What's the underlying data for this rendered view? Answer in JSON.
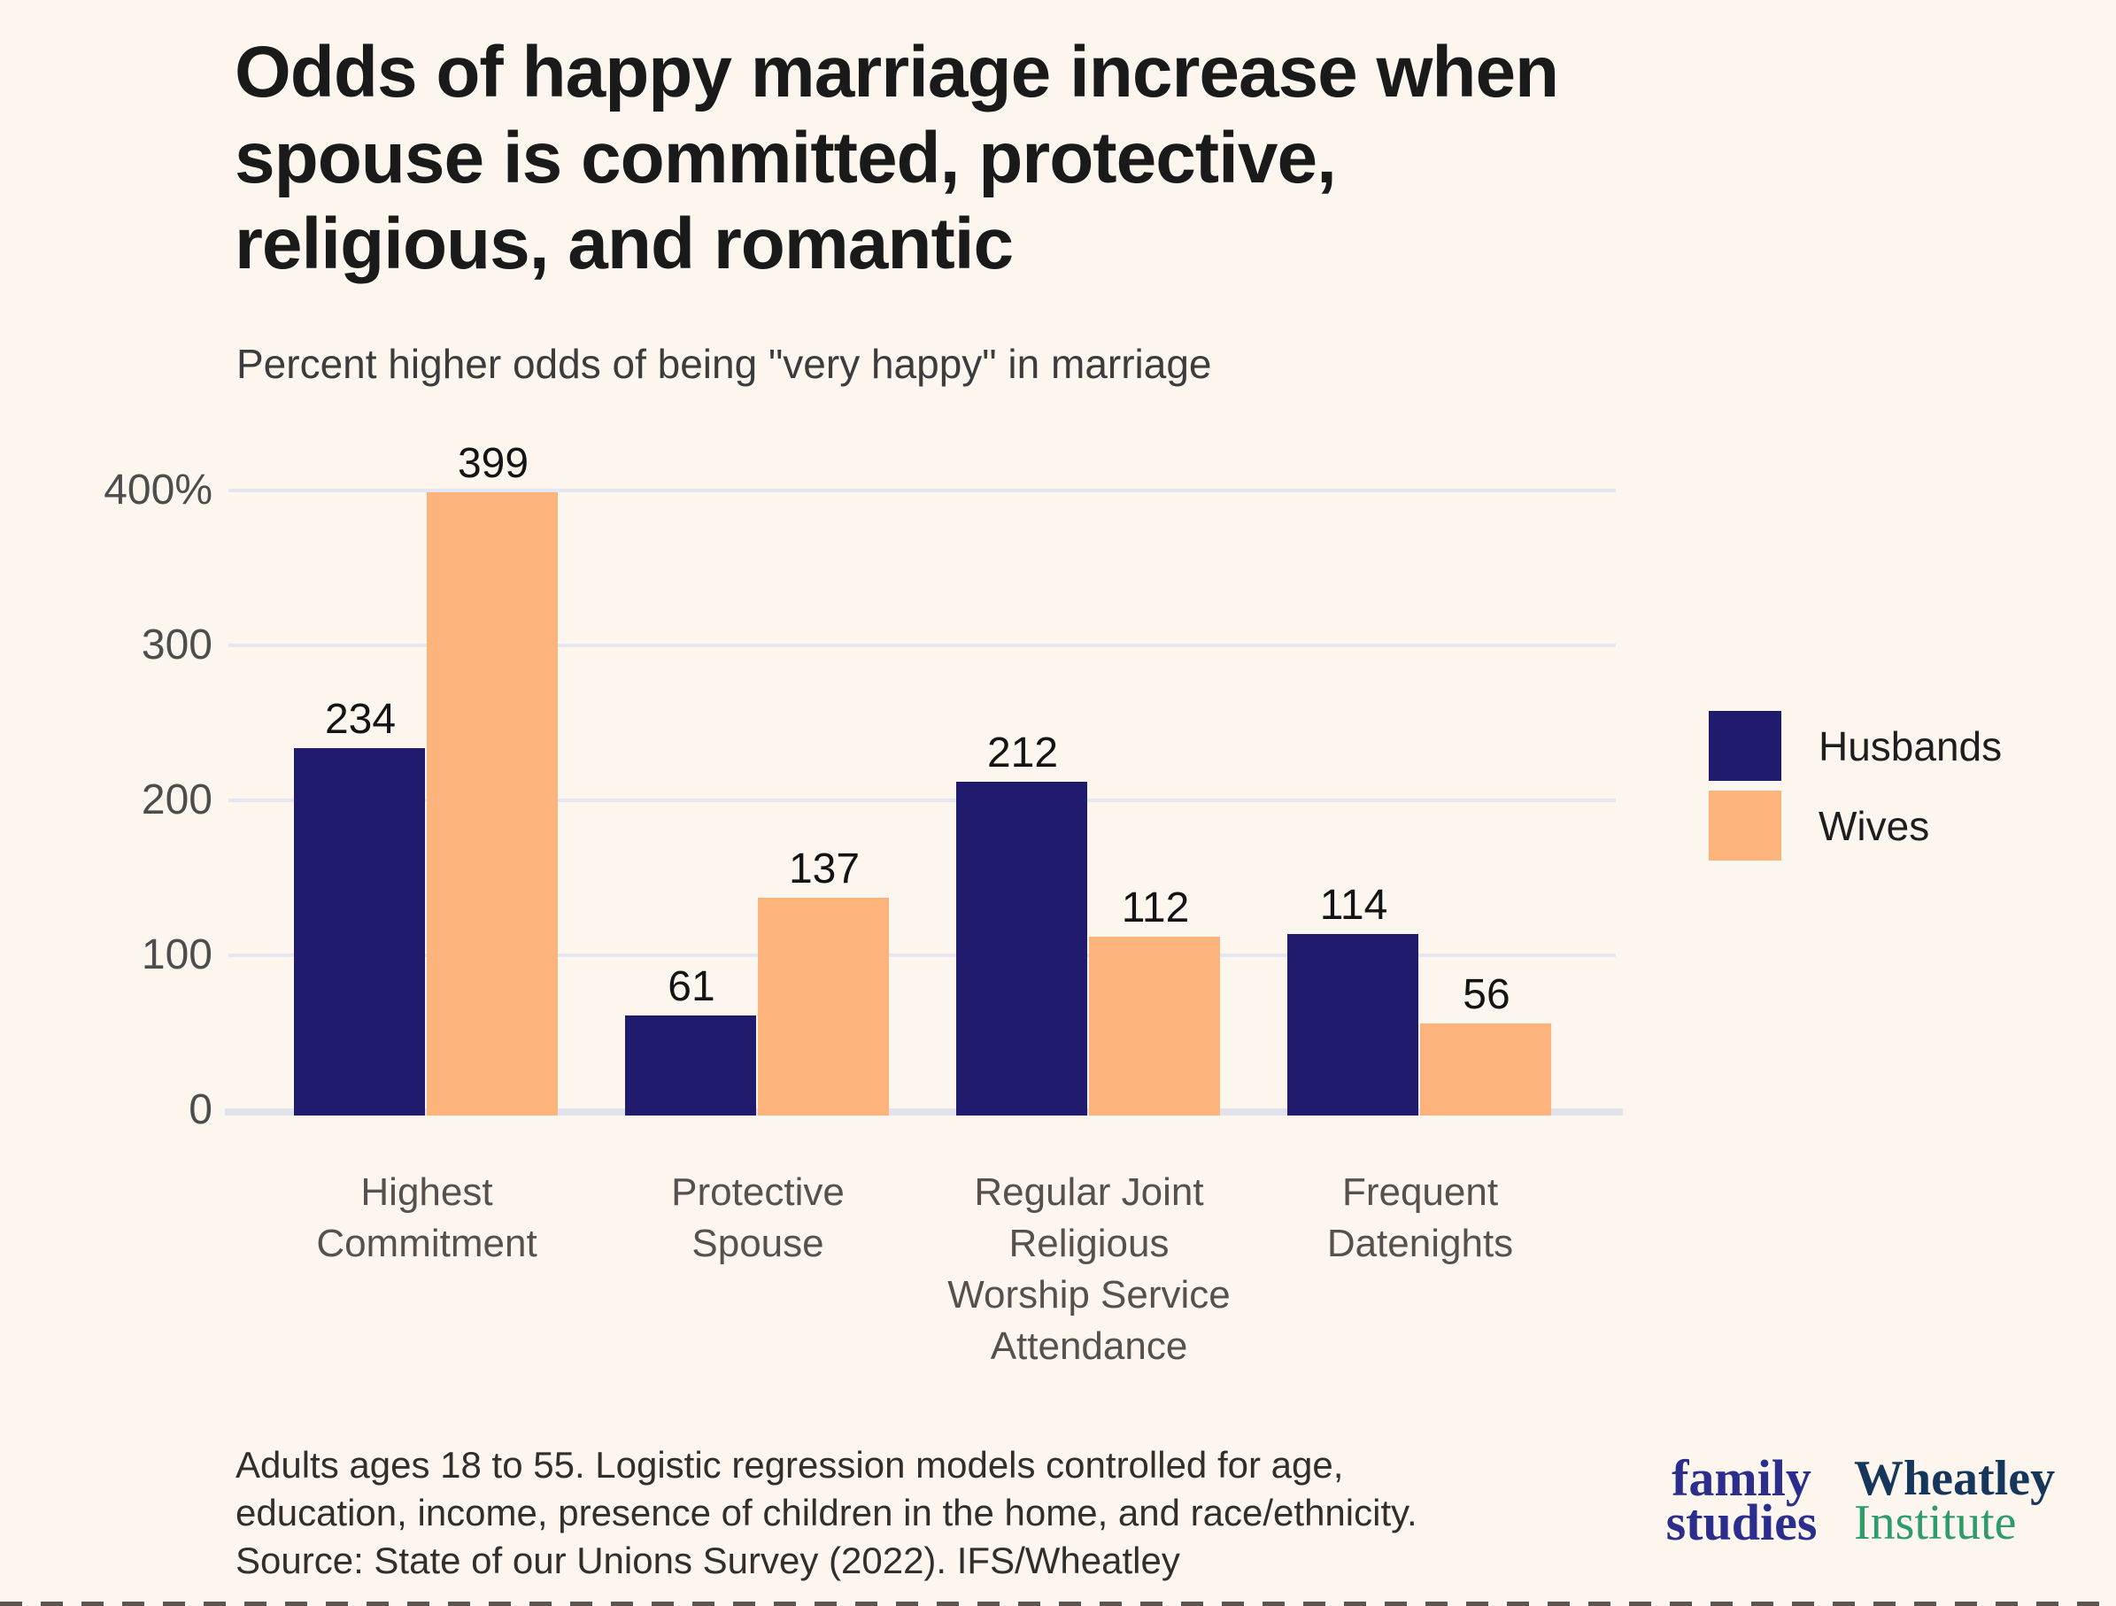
{
  "page": {
    "background": "#fdf6ee"
  },
  "header": {
    "title": "Odds of happy marriage increase when spouse is committed, protective, religious, and romantic",
    "title_lines": [
      "Odds of happy marriage increase when",
      "spouse is committed, protective,",
      "religious, and romantic"
    ],
    "subtitle": "Percent higher odds of being \"very happy\" in marriage"
  },
  "chart_data": {
    "type": "bar",
    "categories": [
      "Highest Commitment",
      "Protective Spouse",
      "Regular Joint Religious Worship Service Attendance",
      "Frequent Datenights"
    ],
    "category_lines": [
      [
        "Highest",
        "Commitment"
      ],
      [
        "Protective",
        "Spouse"
      ],
      [
        "Regular Joint",
        "Religious",
        "Worship Service",
        "Attendance"
      ],
      [
        "Frequent",
        "Datenights"
      ]
    ],
    "series": [
      {
        "name": "Husbands",
        "color": "#211b6e",
        "values": [
          234,
          61,
          212,
          114
        ]
      },
      {
        "name": "Wives",
        "color": "#fcb47c",
        "values": [
          399,
          137,
          112,
          56
        ]
      }
    ],
    "title": "Odds of happy marriage increase when spouse is committed, protective, religious, and romantic",
    "subtitle": "Percent higher odds of being \"very happy\" in marriage",
    "xlabel": "",
    "ylabel": "Percent higher odds of being \"very happy\" in marriage",
    "ylim": [
      0,
      400
    ],
    "yticks": [
      {
        "value": 400,
        "label": "400%"
      },
      {
        "value": 300,
        "label": "300"
      },
      {
        "value": 200,
        "label": "200"
      },
      {
        "value": 100,
        "label": "100"
      },
      {
        "value": 0,
        "label": "0"
      }
    ],
    "grid": true,
    "legend_position": "right"
  },
  "legend": {
    "items": [
      {
        "label": "Husbands",
        "color": "#211b6e"
      },
      {
        "label": "Wives",
        "color": "#fcb47c"
      }
    ]
  },
  "footnote": {
    "lines": [
      "Adults ages 18 to 55. Logistic regression models controlled for age,",
      "education, income, presence of children in the home, and race/ethnicity.",
      "Source: State of our Unions Survey (2022). IFS/Wheatley"
    ]
  },
  "branding": {
    "family_studies": {
      "line1": "family",
      "line2": "studies",
      "color": "#2b2e8c"
    },
    "wheatley": {
      "line1": "Wheatley",
      "line2": "Institute",
      "color1": "#16365c",
      "color2": "#2e9c69"
    }
  }
}
